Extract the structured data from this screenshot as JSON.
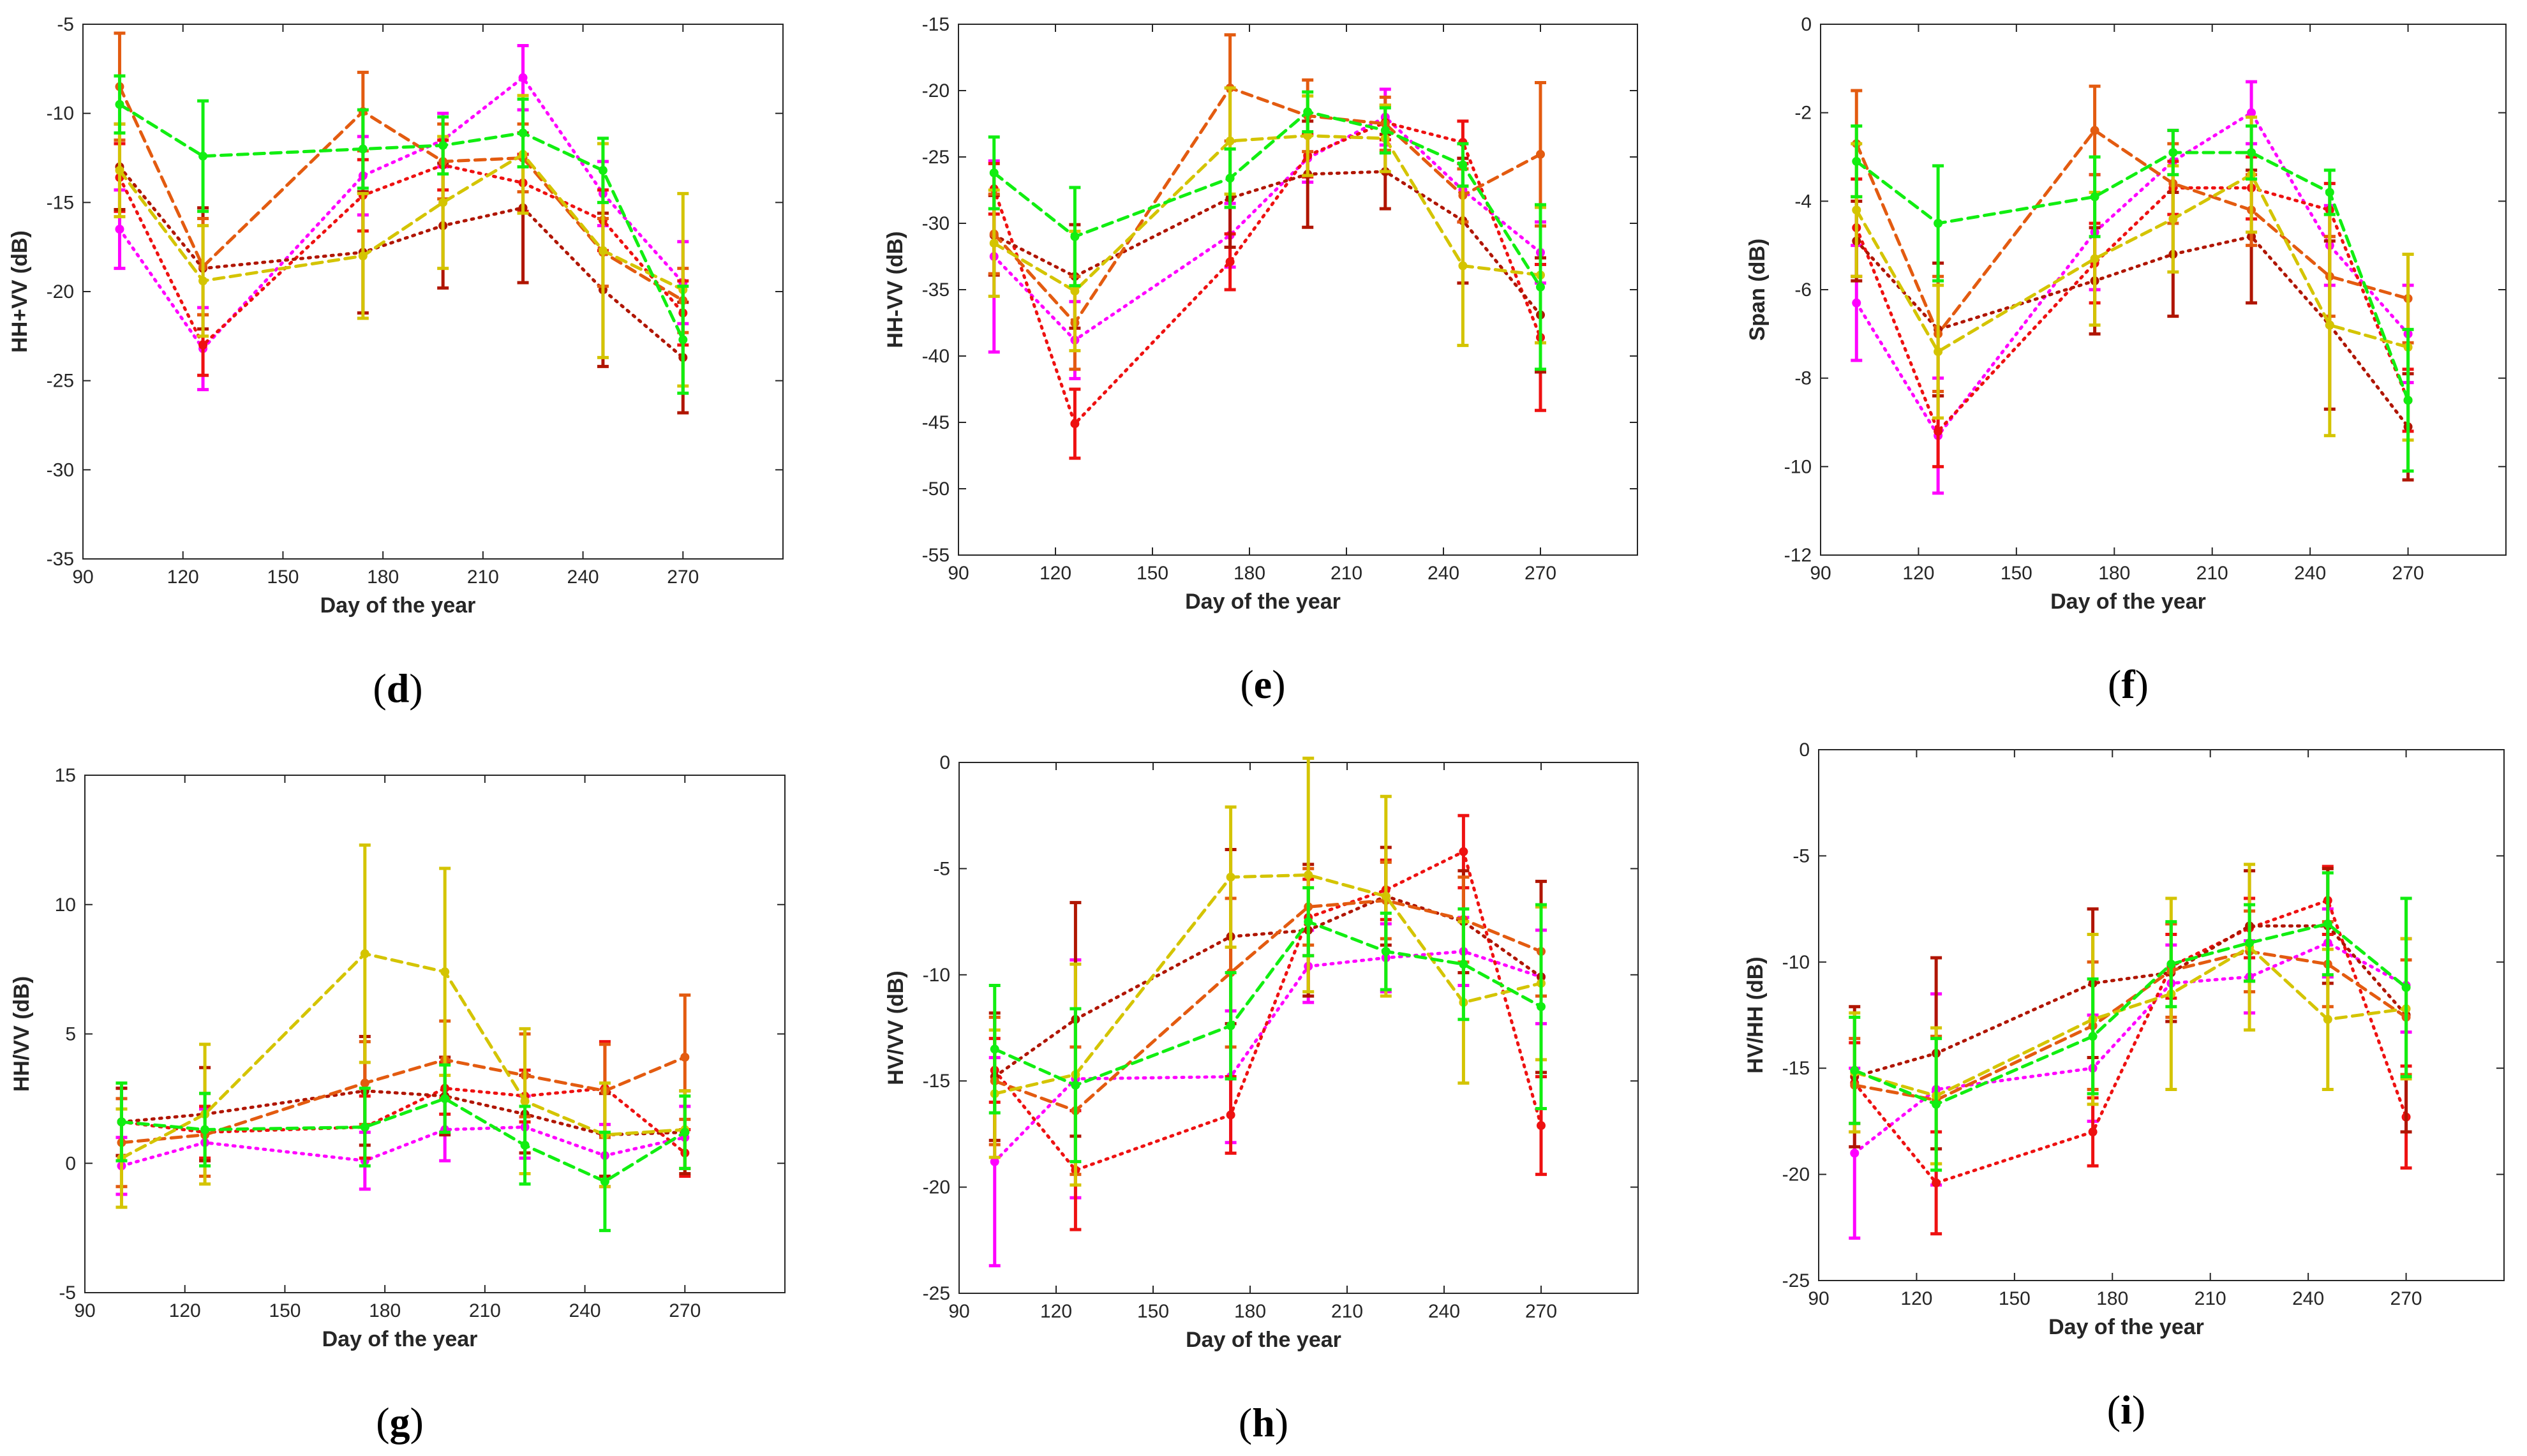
{
  "series_colors": [
    "#ff00ff",
    "#ee1111",
    "#b01500",
    "#e35b10",
    "#d4c400",
    "#11ee11"
  ],
  "series_styles": [
    "dotted",
    "dotted",
    "dotted",
    "dashed",
    "dashed",
    "dashed"
  ],
  "chart_data": [
    {
      "type": "line",
      "label": "d",
      "xlabel": "Day of the year",
      "ylabel": "HH+VV (dB)",
      "xlim": [
        90,
        300
      ],
      "ylim": [
        -35,
        -5
      ],
      "xticks": [
        90,
        120,
        150,
        180,
        210,
        240,
        270
      ],
      "yticks": [
        -35,
        -30,
        -25,
        -20,
        -15,
        -10,
        -5
      ],
      "x": [
        101,
        126,
        174,
        198,
        222,
        246,
        270
      ],
      "series": [
        {
          "values": [
            -16.5,
            -23.2,
            -13.5,
            -11.5,
            -8.0,
            -14.5,
            -19.5
          ],
          "errors": [
            2.2,
            2.3,
            2.2,
            1.5,
            1.8,
            1.8,
            2.3
          ]
        },
        {
          "values": [
            -13.6,
            -23.0,
            -14.6,
            -12.9,
            -13.9,
            -16.0,
            -21.2
          ],
          "errors": [
            1.9,
            1.7,
            2.0,
            1.4,
            1.6,
            1.7,
            1.8
          ]
        },
        {
          "values": [
            -13.0,
            -18.7,
            -17.8,
            -16.3,
            -15.3,
            -19.9,
            -23.7
          ],
          "errors": [
            2.4,
            3.4,
            3.4,
            3.5,
            4.2,
            4.3,
            3.1
          ]
        },
        {
          "values": [
            -8.5,
            -18.6,
            -9.9,
            -12.7,
            -12.5,
            -17.8,
            -20.5
          ],
          "errors": [
            3.0,
            2.7,
            2.2,
            2.1,
            1.9,
            1.9,
            1.8
          ]
        },
        {
          "values": [
            -13.2,
            -19.4,
            -18.0,
            -15.0,
            -12.3,
            -17.7,
            -19.9
          ],
          "errors": [
            2.6,
            3.1,
            3.5,
            3.7,
            3.3,
            6.0,
            5.4
          ]
        },
        {
          "values": [
            -9.5,
            -12.4,
            -12.0,
            -11.8,
            -11.1,
            -13.2,
            -22.7
          ],
          "errors": [
            1.6,
            3.1,
            2.2,
            1.6,
            1.9,
            1.8,
            3.0
          ]
        }
      ]
    },
    {
      "type": "line",
      "label": "e",
      "xlabel": "Day of the year",
      "ylabel": "HH-VV (dB)",
      "xlim": [
        90,
        300
      ],
      "ylim": [
        -55,
        -15
      ],
      "xticks": [
        90,
        120,
        150,
        180,
        210,
        240,
        270
      ],
      "yticks": [
        -55,
        -50,
        -45,
        -40,
        -35,
        -30,
        -25,
        -20,
        -15
      ],
      "x": [
        101,
        126,
        174,
        198,
        222,
        246,
        270
      ],
      "series": [
        {
          "values": [
            -32.5,
            -38.8,
            -30.9,
            -25.1,
            -22.0,
            -27.5,
            -32.2
          ],
          "errors": [
            7.2,
            2.9,
            2.4,
            1.8,
            2.1,
            2.4,
            2.3
          ]
        },
        {
          "values": [
            -27.4,
            -45.1,
            -32.9,
            -24.9,
            -22.4,
            -23.9,
            -38.6
          ],
          "errors": [
            1.9,
            2.6,
            2.1,
            1.6,
            1.3,
            1.6,
            5.5
          ]
        },
        {
          "values": [
            -30.9,
            -34.0,
            -28.1,
            -26.3,
            -26.1,
            -29.8,
            -36.9
          ],
          "errors": [
            3.0,
            3.9,
            3.7,
            4.0,
            2.8,
            4.7,
            4.3
          ]
        },
        {
          "values": [
            -30.8,
            -37.5,
            -19.8,
            -21.9,
            -22.5,
            -27.9,
            -24.8
          ],
          "errors": [
            3.0,
            3.5,
            4.0,
            2.7,
            2.0,
            2.0,
            5.4
          ]
        },
        {
          "values": [
            -31.5,
            -35.1,
            -23.8,
            -23.4,
            -23.6,
            -33.2,
            -33.9
          ],
          "errors": [
            4.0,
            4.5,
            4.0,
            3.0,
            2.5,
            6.0,
            5.1
          ]
        },
        {
          "values": [
            -26.2,
            -31.0,
            -26.6,
            -21.6,
            -23.0,
            -25.6,
            -34.8
          ],
          "errors": [
            2.7,
            3.7,
            2.2,
            1.5,
            1.7,
            1.6,
            6.2
          ]
        }
      ]
    },
    {
      "type": "line",
      "label": "f",
      "xlabel": "Day of the year",
      "ylabel": "Span (dB)",
      "xlim": [
        90,
        300
      ],
      "ylim": [
        -12,
        0
      ],
      "xticks": [
        90,
        120,
        150,
        180,
        210,
        240,
        270
      ],
      "yticks": [
        -12,
        -10,
        -8,
        -6,
        -4,
        -2,
        0
      ],
      "x": [
        101,
        126,
        174,
        198,
        222,
        246,
        270
      ],
      "series": [
        {
          "values": [
            -6.3,
            -9.3,
            -4.7,
            -3.1,
            -2.0,
            -5.0,
            -7.0
          ],
          "errors": [
            1.3,
            1.3,
            1.3,
            0.7,
            0.7,
            0.9,
            1.1
          ]
        },
        {
          "values": [
            -4.6,
            -9.2,
            -5.4,
            -3.7,
            -3.7,
            -4.2,
            -8.5
          ],
          "errors": [
            1.1,
            0.8,
            0.9,
            0.6,
            0.7,
            0.6,
            0.7
          ]
        },
        {
          "values": [
            -4.9,
            -6.9,
            -5.8,
            -5.2,
            -4.8,
            -6.8,
            -9.1
          ],
          "errors": [
            0.9,
            1.5,
            1.2,
            1.4,
            1.5,
            1.9,
            1.2
          ]
        },
        {
          "values": [
            -2.7,
            -7.0,
            -2.4,
            -3.6,
            -4.2,
            -5.7,
            -6.2
          ],
          "errors": [
            1.2,
            1.3,
            1.0,
            0.9,
            0.8,
            0.9,
            1.0
          ]
        },
        {
          "values": [
            -4.2,
            -7.4,
            -5.3,
            -4.4,
            -3.4,
            -6.8,
            -7.3
          ],
          "errors": [
            1.5,
            1.5,
            1.5,
            1.2,
            1.3,
            2.5,
            2.1
          ]
        },
        {
          "values": [
            -3.1,
            -4.5,
            -3.9,
            -2.9,
            -2.9,
            -3.8,
            -8.5
          ],
          "errors": [
            0.8,
            1.3,
            0.9,
            0.5,
            0.6,
            0.5,
            1.6
          ]
        }
      ]
    },
    {
      "type": "line",
      "label": "g",
      "xlabel": "Day of the year",
      "ylabel": "HH/VV (dB)",
      "xlim": [
        90,
        300
      ],
      "ylim": [
        -5,
        15
      ],
      "xticks": [
        90,
        120,
        150,
        180,
        210,
        240,
        270
      ],
      "yticks": [
        -5,
        0,
        5,
        10,
        15
      ],
      "x": [
        101,
        126,
        174,
        198,
        222,
        246,
        270
      ],
      "series": [
        {
          "values": [
            -0.1,
            0.8,
            0.1,
            1.3,
            1.4,
            0.3,
            1.0
          ],
          "errors": [
            1.1,
            1.3,
            1.1,
            1.2,
            1.2,
            1.2,
            1.2
          ]
        },
        {
          "values": [
            1.6,
            1.2,
            1.4,
            2.9,
            2.6,
            2.9,
            0.4
          ],
          "errors": [
            1.3,
            1.0,
            1.2,
            1.0,
            1.0,
            1.8,
            0.9
          ]
        },
        {
          "values": [
            1.6,
            1.9,
            2.8,
            2.6,
            1.9,
            1.1,
            1.2
          ],
          "errors": [
            1.3,
            1.8,
            2.1,
            1.5,
            1.5,
            1.6,
            1.6
          ]
        },
        {
          "values": [
            0.8,
            1.1,
            3.1,
            4.0,
            3.4,
            2.8,
            4.1
          ],
          "errors": [
            1.7,
            1.6,
            1.6,
            1.5,
            1.6,
            1.8,
            2.4
          ]
        },
        {
          "values": [
            0.2,
            1.9,
            8.1,
            7.4,
            2.4,
            1.1,
            1.3
          ],
          "errors": [
            1.9,
            2.7,
            4.2,
            4.0,
            2.8,
            2.0,
            1.5
          ]
        },
        {
          "values": [
            1.6,
            1.3,
            1.4,
            2.5,
            0.7,
            -0.7,
            1.2
          ],
          "errors": [
            1.5,
            1.4,
            1.5,
            1.3,
            1.5,
            1.9,
            1.4
          ]
        }
      ]
    },
    {
      "type": "line",
      "label": "h",
      "xlabel": "Day of the year",
      "ylabel": "HV/VV (dB)",
      "xlim": [
        90,
        300
      ],
      "ylim": [
        -25,
        0
      ],
      "xticks": [
        90,
        120,
        150,
        180,
        210,
        240,
        270
      ],
      "yticks": [
        -25,
        -20,
        -15,
        -10,
        -5,
        0
      ],
      "x": [
        101,
        126,
        174,
        198,
        222,
        246,
        270
      ],
      "series": [
        {
          "values": [
            -18.8,
            -14.9,
            -14.8,
            -9.6,
            -9.2,
            -8.9,
            -10.1
          ],
          "errors": [
            4.9,
            5.6,
            3.1,
            1.7,
            1.6,
            1.6,
            2.2
          ]
        },
        {
          "values": [
            -14.5,
            -19.2,
            -16.6,
            -7.3,
            -6.0,
            -4.2,
            -17.1
          ],
          "errors": [
            1.5,
            2.8,
            1.8,
            1.8,
            1.4,
            1.7,
            2.3
          ]
        },
        {
          "values": [
            -14.8,
            -12.1,
            -8.2,
            -7.9,
            -6.3,
            -7.5,
            -10.1
          ],
          "errors": [
            3.0,
            5.5,
            4.1,
            3.1,
            2.3,
            2.4,
            4.5
          ]
        },
        {
          "values": [
            -15.0,
            -16.4,
            -9.9,
            -6.8,
            -6.5,
            -7.4,
            -8.9
          ],
          "errors": [
            3.0,
            3.0,
            3.5,
            1.8,
            1.8,
            2.0,
            2.1
          ]
        },
        {
          "values": [
            -15.6,
            -14.7,
            -5.4,
            -5.3,
            -6.3,
            -11.3,
            -10.4
          ],
          "errors": [
            3.0,
            5.2,
            3.3,
            5.5,
            4.7,
            3.8,
            3.6
          ]
        },
        {
          "values": [
            -13.5,
            -15.2,
            -12.4,
            -7.5,
            -8.9,
            -9.5,
            -11.5
          ],
          "errors": [
            3.0,
            3.6,
            2.5,
            1.6,
            1.8,
            2.6,
            4.8
          ]
        }
      ]
    },
    {
      "type": "line",
      "label": "i",
      "xlabel": "Day of the year",
      "ylabel": "HV/HH (dB)",
      "xlim": [
        90,
        300
      ],
      "ylim": [
        -25,
        0
      ],
      "xticks": [
        90,
        120,
        150,
        180,
        210,
        240,
        270
      ],
      "yticks": [
        -25,
        -20,
        -15,
        -10,
        -5,
        0
      ],
      "x": [
        101,
        126,
        174,
        198,
        222,
        246,
        270
      ],
      "series": [
        {
          "values": [
            -19.0,
            -16.0,
            -15.0,
            -11.0,
            -10.7,
            -9.1,
            -11.1
          ],
          "errors": [
            4.0,
            4.5,
            2.5,
            1.8,
            1.7,
            1.6,
            2.2
          ]
        },
        {
          "values": [
            -15.7,
            -20.4,
            -18.0,
            -10.2,
            -8.4,
            -7.1,
            -17.3
          ],
          "errors": [
            1.9,
            2.4,
            1.6,
            1.5,
            1.4,
            1.6,
            2.4
          ]
        },
        {
          "values": [
            -15.4,
            -14.3,
            -11.0,
            -10.5,
            -8.3,
            -8.3,
            -12.5
          ],
          "errors": [
            3.3,
            4.5,
            3.5,
            2.3,
            2.6,
            2.7,
            5.5
          ]
        },
        {
          "values": [
            -15.8,
            -16.5,
            -13.0,
            -10.4,
            -9.5,
            -10.1,
            -12.6
          ],
          "errors": [
            2.2,
            3.0,
            3.0,
            2.2,
            1.9,
            2.0,
            2.7
          ]
        },
        {
          "values": [
            -15.2,
            -16.3,
            -12.7,
            -11.5,
            -9.3,
            -12.7,
            -12.2
          ],
          "errors": [
            2.8,
            3.2,
            4.0,
            4.5,
            3.9,
            3.3,
            3.3
          ]
        },
        {
          "values": [
            -15.1,
            -16.7,
            -13.5,
            -10.1,
            -9.1,
            -8.2,
            -11.2
          ],
          "errors": [
            2.5,
            3.1,
            2.7,
            2.0,
            1.8,
            2.4,
            4.2
          ]
        }
      ]
    }
  ]
}
